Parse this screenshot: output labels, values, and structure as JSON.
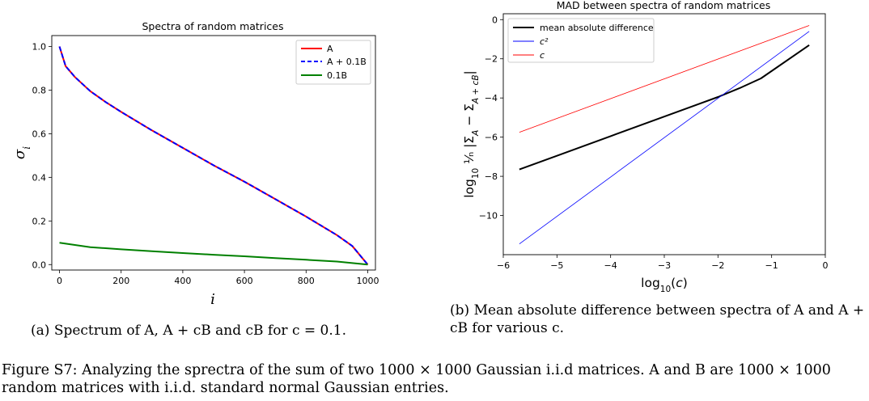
{
  "chart_data": [
    {
      "type": "line",
      "title": "Spectra of random matrices",
      "xlabel": "i",
      "ylabel": "σ_i",
      "xlim": [
        -25,
        1025
      ],
      "ylim": [
        -0.025,
        1.05
      ],
      "xticks": [
        0,
        200,
        400,
        600,
        800,
        1000
      ],
      "xtick_labels": [
        "0",
        "200",
        "400",
        "600",
        "800",
        "1000"
      ],
      "yticks": [
        0.0,
        0.2,
        0.4,
        0.6,
        0.8,
        1.0
      ],
      "ytick_labels": [
        "0.0",
        "0.2",
        "0.4",
        "0.6",
        "0.8",
        "1.0"
      ],
      "legend_position": "top-right",
      "series": [
        {
          "name": "A",
          "color": "#ff0000",
          "style": "solid",
          "x": [
            0,
            20,
            50,
            100,
            150,
            200,
            300,
            400,
            500,
            600,
            700,
            800,
            900,
            950,
            1000
          ],
          "y": [
            1.0,
            0.91,
            0.86,
            0.795,
            0.745,
            0.7,
            0.615,
            0.535,
            0.455,
            0.38,
            0.3,
            0.22,
            0.135,
            0.085,
            0.0
          ]
        },
        {
          "name": "A + 0.1B",
          "color": "#0000ff",
          "style": "dashed",
          "x": [
            0,
            20,
            50,
            100,
            150,
            200,
            300,
            400,
            500,
            600,
            700,
            800,
            900,
            950,
            1000
          ],
          "y": [
            1.0,
            0.91,
            0.86,
            0.795,
            0.745,
            0.7,
            0.615,
            0.535,
            0.455,
            0.38,
            0.3,
            0.22,
            0.135,
            0.085,
            0.0
          ]
        },
        {
          "name": "0.1B",
          "color": "#008000",
          "style": "solid",
          "x": [
            0,
            100,
            200,
            300,
            400,
            500,
            600,
            700,
            800,
            900,
            1000
          ],
          "y": [
            0.1,
            0.08,
            0.07,
            0.061,
            0.053,
            0.045,
            0.038,
            0.03,
            0.022,
            0.014,
            0.0
          ]
        }
      ]
    },
    {
      "type": "line",
      "title": "MAD between spectra of random matrices",
      "xlabel": "log₁₀(c)",
      "ylabel": "log₁₀ (1/n) |Σ_A − Σ_{A+cB}|",
      "xlim": [
        -6,
        0
      ],
      "ylim": [
        -12.0,
        0.3
      ],
      "xticks": [
        -6,
        -5,
        -4,
        -3,
        -2,
        -1,
        0
      ],
      "xtick_labels": [
        "−6",
        "−5",
        "−4",
        "−3",
        "−2",
        "−1",
        "0"
      ],
      "yticks": [
        0,
        -2,
        -4,
        -6,
        -8,
        -10
      ],
      "ytick_labels": [
        "0",
        "−2",
        "−4",
        "−6",
        "−8",
        "−10"
      ],
      "legend_position": "top-left",
      "series": [
        {
          "name": "mean absolute difference",
          "color": "#000000",
          "width": 2,
          "x": [
            -5.7,
            -5.0,
            -4.0,
            -3.0,
            -2.0,
            -1.6,
            -1.2,
            -0.3
          ],
          "y": [
            -7.65,
            -6.95,
            -5.95,
            -4.95,
            -3.95,
            -3.5,
            -3.0,
            -1.3
          ]
        },
        {
          "name": "c²",
          "color": "#0000ff",
          "width": 0.8,
          "x": [
            -5.7,
            -0.3
          ],
          "y": [
            -11.45,
            -0.6
          ]
        },
        {
          "name": "c",
          "color": "#ff0000",
          "width": 0.8,
          "x": [
            -5.7,
            -0.3
          ],
          "y": [
            -5.75,
            -0.3
          ]
        }
      ]
    }
  ],
  "captions": {
    "a_prefix": "(a)",
    "a_text": "Spectrum of A, A + cB and cB for c = 0.1.",
    "b_prefix": "(b)",
    "b_text": "Mean absolute difference between spectra of A and A + cB for various c.",
    "figure": "Figure S7: Analyzing the sprectra of the sum of two 1000 × 1000 Gaussian i.i.d matrices. A and B are 1000 × 1000 random matrices with i.i.d. standard normal Gaussian entries."
  }
}
